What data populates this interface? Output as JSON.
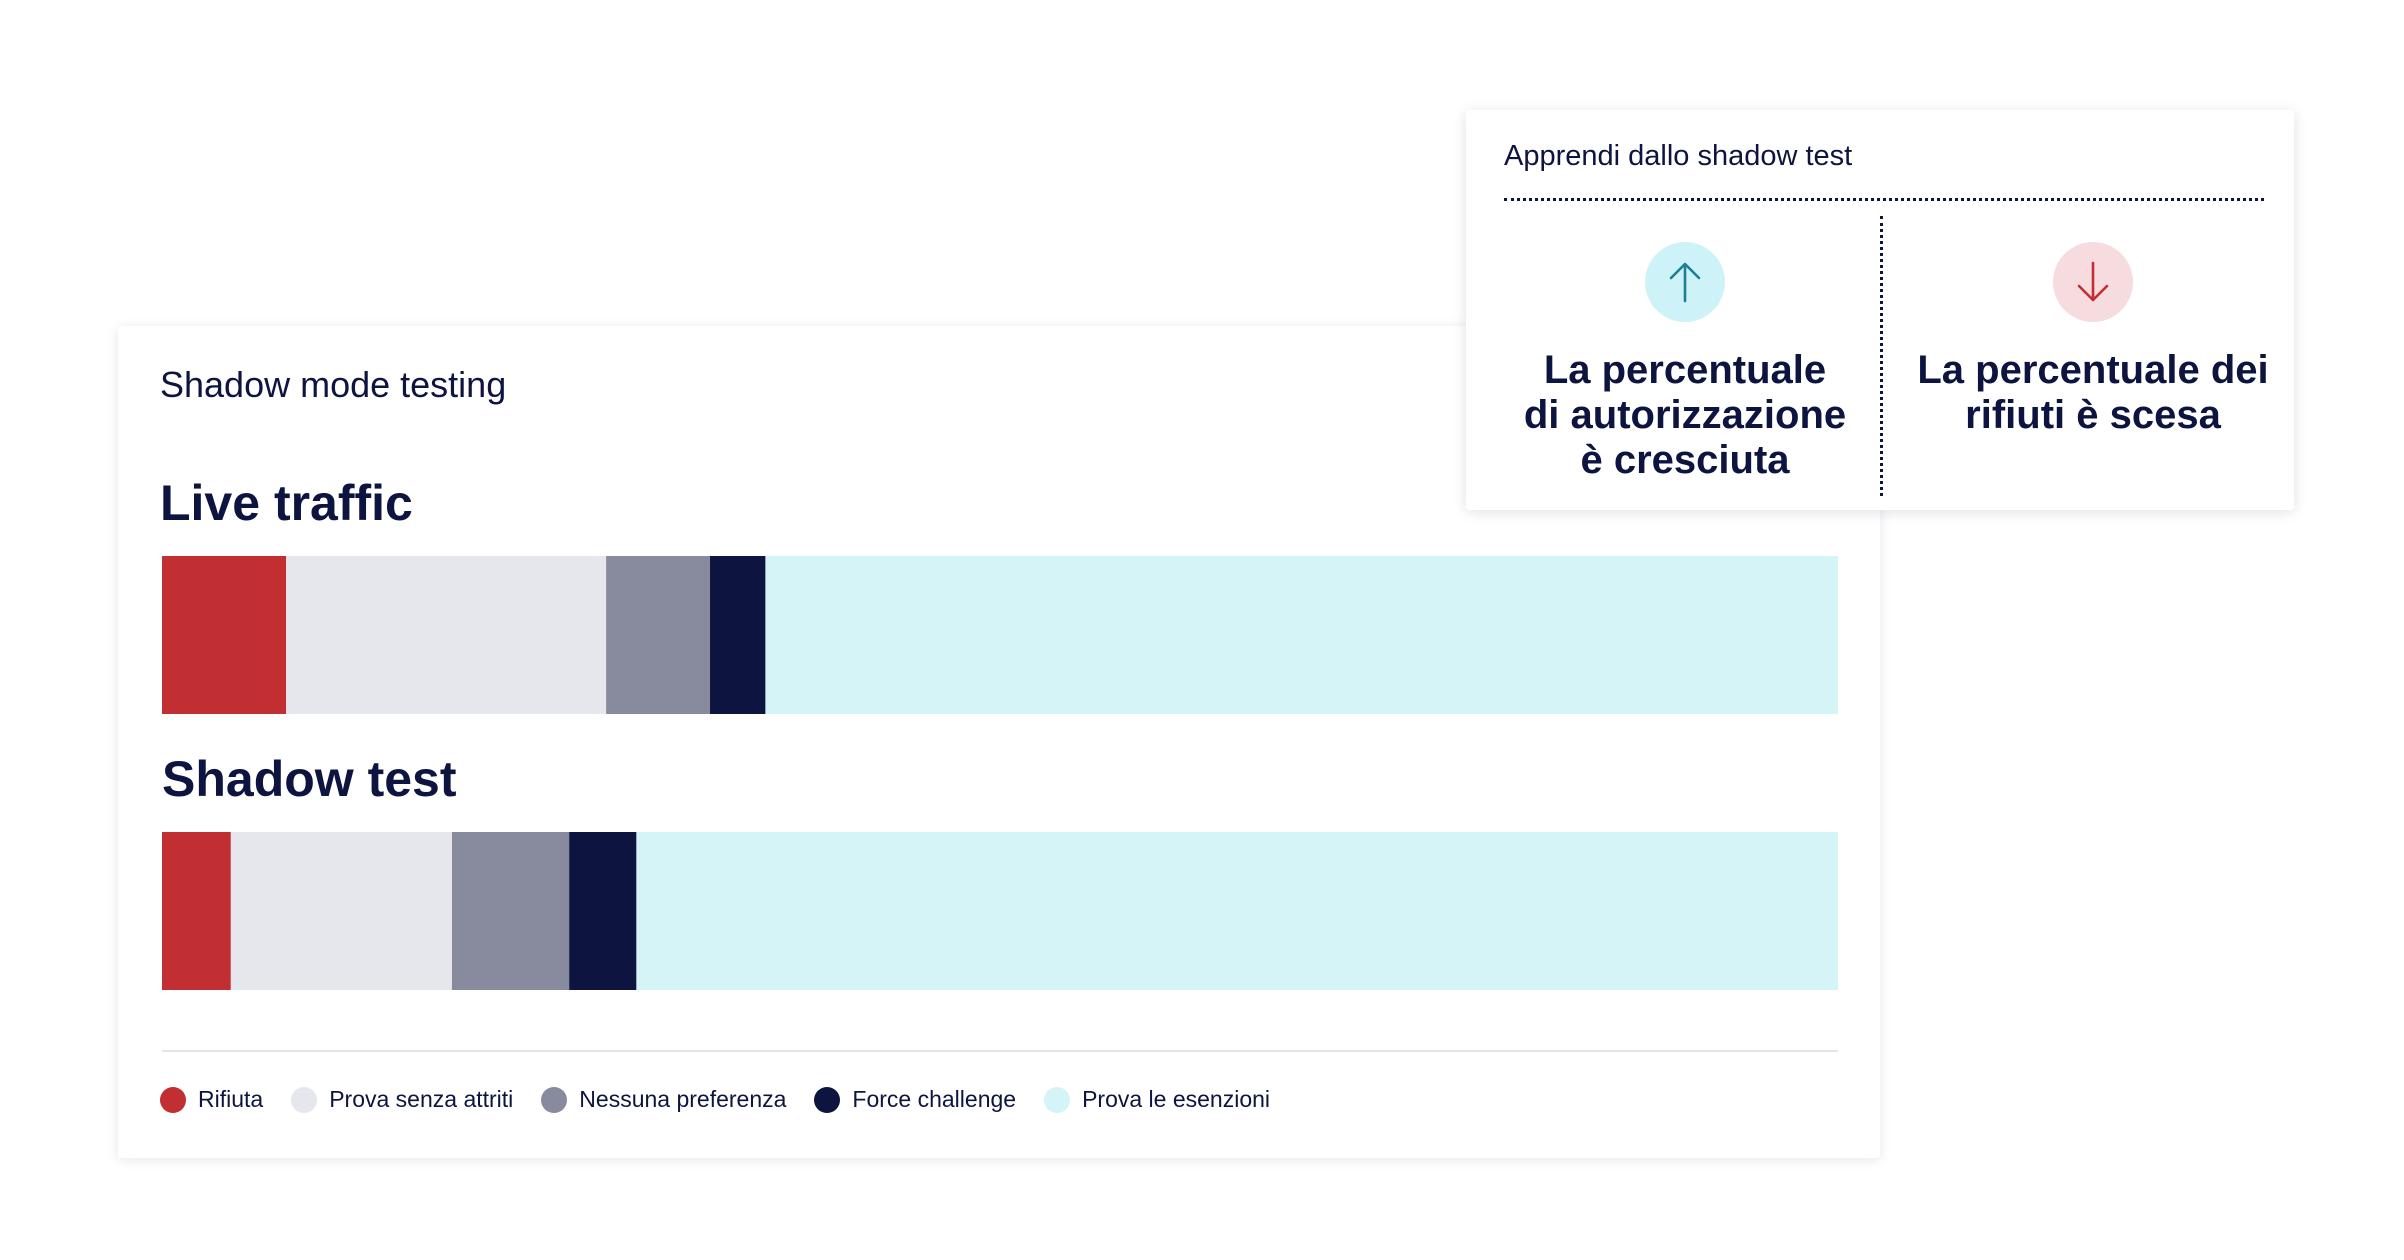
{
  "main_card": {
    "title": "Shadow mode testing",
    "rows": {
      "live": "Live traffic",
      "shadow": "Shadow test"
    }
  },
  "chart_data": {
    "type": "bar",
    "orientation": "horizontal",
    "stacked": true,
    "normalized": true,
    "unit": "%",
    "categories": [
      "Live traffic",
      "Shadow test"
    ],
    "series": [
      {
        "name": "Rifiuta",
        "color": "#c12f33",
        "values": [
          7.4,
          4.1
        ]
      },
      {
        "name": "Prova senza attriti",
        "color": "#e6e7ec",
        "values": [
          19.1,
          13.2
        ]
      },
      {
        "name": "Nessuna preferenza",
        "color": "#888a9e",
        "values": [
          6.2,
          7.0
        ]
      },
      {
        "name": "Force challenge",
        "color": "#0d1440",
        "values": [
          3.3,
          4.0
        ]
      },
      {
        "name": "Prova le esenzioni",
        "color": "#d4f4f7",
        "values": [
          64.0,
          71.7
        ]
      }
    ],
    "legend_position": "bottom-left",
    "grid": false
  },
  "legend": {
    "items": [
      {
        "label": "Rifiuta",
        "color": "#c12f33"
      },
      {
        "label": "Prova senza attriti",
        "color": "#e6e7ec"
      },
      {
        "label": "Nessuna preferenza",
        "color": "#888a9e"
      },
      {
        "label": "Force challenge",
        "color": "#0d1440"
      },
      {
        "label": "Prova le esenzioni",
        "color": "#d4f4f7"
      }
    ]
  },
  "float_card": {
    "heading": "Apprendi dallo shadow test",
    "metrics": [
      {
        "icon": "arrow-up-icon",
        "text": "La percentuale\ndi autorizzazione\nè cresciuta",
        "accent": "#1d8ea3"
      },
      {
        "icon": "arrow-down-icon",
        "text": "La percentuale dei\nrifiuti è scesa",
        "accent": "#c12f33"
      }
    ]
  }
}
